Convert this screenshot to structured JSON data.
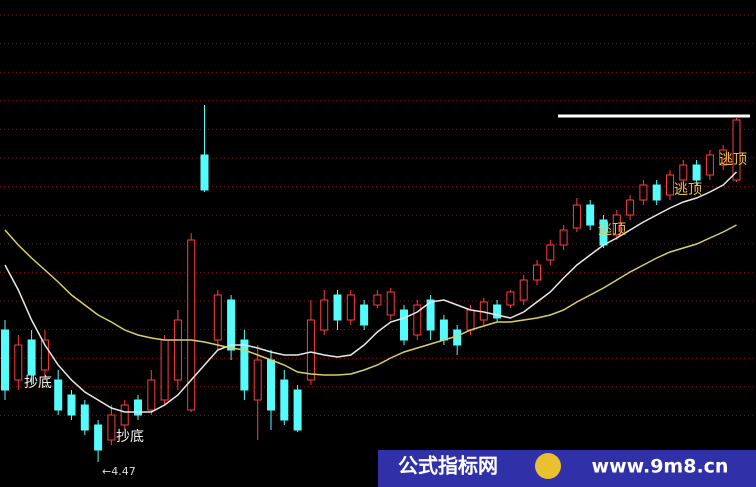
{
  "chart_data": {
    "type": "candlestick",
    "ylim": [
      4.345,
      6.78
    ],
    "up_color": "#ff3c3c",
    "down_color": "#54fcfc",
    "open": [
      5.13,
      4.88,
      5.08,
      4.93,
      4.88,
      4.805,
      4.755,
      4.655,
      4.58,
      4.655,
      4.78,
      4.73,
      4.78,
      4.88,
      4.73,
      6.005,
      5.08,
      5.28,
      5.08,
      4.78,
      4.98,
      4.88,
      4.83,
      4.88,
      5.13,
      5.305,
      5.18,
      5.255,
      5.255,
      5.205,
      5.23,
      5.105,
      5.28,
      5.18,
      5.13,
      5.13,
      5.18,
      5.255,
      5.255,
      5.28,
      5.38,
      5.48,
      5.555,
      5.64,
      5.755,
      5.68,
      5.605,
      5.705,
      5.78,
      5.855,
      5.805,
      5.88,
      5.955,
      5.905,
      5.955,
      5.88
    ],
    "close": [
      4.83,
      5.055,
      4.905,
      5.08,
      4.73,
      4.705,
      4.63,
      4.53,
      4.705,
      4.755,
      4.705,
      4.88,
      5.08,
      5.18,
      5.58,
      5.83,
      5.305,
      5.03,
      4.83,
      4.98,
      4.73,
      4.68,
      4.63,
      5.18,
      5.28,
      5.18,
      5.305,
      5.155,
      5.305,
      5.32,
      5.08,
      5.255,
      5.13,
      5.08,
      5.055,
      5.23,
      5.27,
      5.19,
      5.32,
      5.38,
      5.455,
      5.555,
      5.63,
      5.755,
      5.655,
      5.555,
      5.705,
      5.78,
      5.855,
      5.78,
      5.905,
      5.955,
      5.88,
      6.005,
      6.03,
      6.18
    ],
    "high": [
      5.18,
      5.105,
      5.13,
      5.13,
      4.93,
      4.83,
      4.78,
      4.68,
      4.755,
      4.78,
      4.805,
      4.93,
      5.105,
      5.23,
      5.615,
      6.255,
      5.33,
      5.305,
      5.13,
      5.055,
      5.03,
      4.93,
      4.855,
      5.28,
      5.33,
      5.33,
      5.33,
      5.28,
      5.33,
      5.34,
      5.255,
      5.28,
      5.305,
      5.205,
      5.155,
      5.255,
      5.29,
      5.28,
      5.33,
      5.405,
      5.48,
      5.58,
      5.655,
      5.79,
      5.78,
      5.705,
      5.73,
      5.805,
      5.88,
      5.88,
      5.93,
      5.98,
      5.98,
      6.03,
      6.055,
      6.19
    ],
    "low": [
      4.78,
      4.83,
      4.855,
      4.88,
      4.705,
      4.68,
      4.605,
      4.47,
      4.555,
      4.63,
      4.68,
      4.705,
      4.755,
      4.83,
      4.72,
      5.82,
      5.03,
      4.98,
      4.78,
      4.58,
      4.63,
      4.655,
      4.62,
      4.855,
      5.105,
      5.13,
      5.155,
      5.13,
      5.24,
      5.18,
      5.055,
      5.08,
      5.08,
      5.055,
      5.005,
      5.105,
      5.155,
      5.17,
      5.24,
      5.255,
      5.355,
      5.455,
      5.53,
      5.62,
      5.63,
      5.54,
      5.58,
      5.68,
      5.755,
      5.755,
      5.78,
      5.855,
      5.855,
      5.88,
      5.93,
      5.87
    ],
    "series": [
      {
        "color": "#e8e8e8",
        "values": [
          5.455,
          5.33,
          5.18,
          5.055,
          4.955,
          4.88,
          4.82,
          4.78,
          4.74,
          4.72,
          4.72,
          4.72,
          4.755,
          4.805,
          4.88,
          4.955,
          5.03,
          5.055,
          5.055,
          5.04,
          5.02,
          5.005,
          5.005,
          5.02,
          5.005,
          4.995,
          5.005,
          5.055,
          5.12,
          5.17,
          5.19,
          5.22,
          5.27,
          5.28,
          5.255,
          5.23,
          5.22,
          5.205,
          5.19,
          5.22,
          5.27,
          5.32,
          5.39,
          5.455,
          5.505,
          5.555,
          5.59,
          5.63,
          5.67,
          5.705,
          5.74,
          5.77,
          5.79,
          5.82,
          5.855,
          5.92
        ]
      },
      {
        "color": "#d8cf6a",
        "values": [
          5.63,
          5.555,
          5.49,
          5.43,
          5.37,
          5.305,
          5.255,
          5.205,
          5.17,
          5.13,
          5.105,
          5.09,
          5.08,
          5.08,
          5.08,
          5.07,
          5.055,
          5.04,
          5.03,
          5.005,
          4.98,
          4.955,
          4.92,
          4.91,
          4.905,
          4.905,
          4.91,
          4.93,
          4.955,
          4.99,
          5.02,
          5.04,
          5.06,
          5.08,
          5.1,
          5.13,
          5.15,
          5.17,
          5.17,
          5.18,
          5.19,
          5.205,
          5.23,
          5.27,
          5.305,
          5.34,
          5.38,
          5.42,
          5.455,
          5.49,
          5.52,
          5.54,
          5.56,
          5.59,
          5.62,
          5.655
        ]
      }
    ],
    "annotations": [
      "抄底",
      "抄底",
      "逃顶",
      "逃顶",
      "逃顶"
    ],
    "low_label": {
      "value": 4.47,
      "label": "←4.47"
    }
  },
  "watermark": {
    "site": "公式指标网",
    "url": "www.9m8.cn"
  }
}
